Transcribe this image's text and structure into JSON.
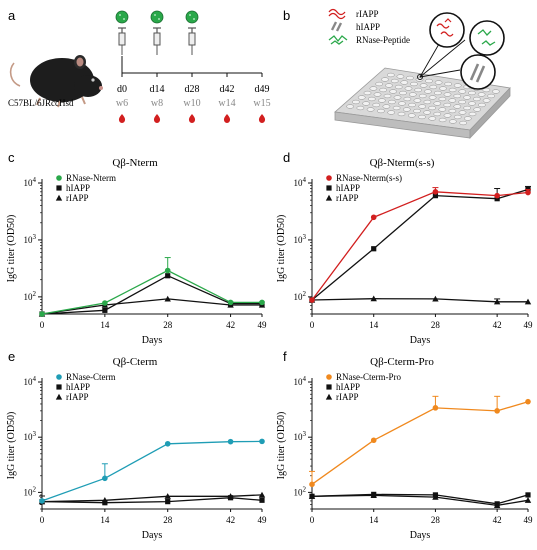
{
  "panels": {
    "a": {
      "letter": "a",
      "mouse_label": "C57BL/6JRccHsd",
      "timeline_days": [
        "d0",
        "d14",
        "d28",
        "d42",
        "d49"
      ],
      "timeline_weeks": [
        "w6",
        "w8",
        "w10",
        "w14",
        "w15"
      ],
      "colors": {
        "vaccine": "#2aa84a",
        "drop": "#d21f1f"
      }
    },
    "b": {
      "letter": "b",
      "legend": [
        "rIAPP",
        "hIAPP",
        "RNase-Peptide"
      ],
      "colors": {
        "rIAPP": "#d21f1f",
        "hIAPP": "#888888",
        "RNase-Peptide": "#2aa84a"
      }
    }
  },
  "chart_data": [
    {
      "letter": "c",
      "type": "line",
      "title": "Qβ-Nterm",
      "xlabel": "Days",
      "ylabel": "IgG titer (OD50)",
      "x": [
        0,
        14,
        28,
        42,
        49
      ],
      "y_scale": "log",
      "ylim": [
        50,
        10000
      ],
      "y_ticks": [
        {
          "label": "10",
          "sup": "2",
          "value": 100
        },
        {
          "label": "10",
          "sup": "3",
          "value": 1000
        },
        {
          "label": "10",
          "sup": "4",
          "value": 10000
        }
      ],
      "series": [
        {
          "name": "RNase-Nterm",
          "marker": "circle",
          "color": "#2aa84a",
          "values": [
            50,
            78,
            290,
            80,
            80
          ],
          "err": [
            0,
            0,
            200,
            0,
            0
          ]
        },
        {
          "name": "hIAPP",
          "marker": "square",
          "color": "#111111",
          "values": [
            50,
            58,
            235,
            76,
            76
          ],
          "err": [
            0,
            0,
            0,
            0,
            0
          ]
        },
        {
          "name": "rIAPP",
          "marker": "triangle",
          "color": "#111111",
          "values": [
            50,
            72,
            92,
            72,
            72
          ],
          "err": [
            0,
            0,
            0,
            0,
            0
          ]
        }
      ]
    },
    {
      "letter": "d",
      "type": "line",
      "title": "Qβ-Nterm(s-s)",
      "xlabel": "Days",
      "ylabel": "IgG titer (OD50)",
      "x": [
        0,
        14,
        28,
        42,
        49
      ],
      "y_scale": "log",
      "ylim": [
        50,
        10000
      ],
      "y_ticks": [
        {
          "label": "10",
          "sup": "2",
          "value": 100
        },
        {
          "label": "10",
          "sup": "3",
          "value": 1000
        },
        {
          "label": "10",
          "sup": "4",
          "value": 10000
        }
      ],
      "series": [
        {
          "name": "RNase-Nterm(s-s)",
          "marker": "circle",
          "color": "#d21f1f",
          "values": [
            88,
            2500,
            7000,
            6000,
            6800
          ],
          "err": [
            0,
            0,
            1300,
            0,
            900
          ]
        },
        {
          "name": "hIAPP",
          "marker": "square",
          "color": "#111111",
          "values": [
            88,
            700,
            6000,
            5300,
            7700
          ],
          "err": [
            0,
            0,
            0,
            2700,
            1000
          ]
        },
        {
          "name": "rIAPP",
          "marker": "triangle",
          "color": "#111111",
          "values": [
            88,
            93,
            92,
            82,
            82
          ],
          "err": [
            0,
            0,
            0,
            10,
            0
          ]
        }
      ]
    },
    {
      "letter": "e",
      "type": "line",
      "title": "Qβ-Cterm",
      "xlabel": "Days",
      "ylabel": "IgG titer (OD50)",
      "x": [
        0,
        14,
        28,
        42,
        49
      ],
      "y_scale": "log",
      "ylim": [
        50,
        10000
      ],
      "y_ticks": [
        {
          "label": "10",
          "sup": "2",
          "value": 100
        },
        {
          "label": "10",
          "sup": "3",
          "value": 1000
        },
        {
          "label": "10",
          "sup": "4",
          "value": 10000
        }
      ],
      "series": [
        {
          "name": "RNase-Cterm",
          "marker": "circle",
          "color": "#1f9db5",
          "values": [
            70,
            180,
            760,
            830,
            840
          ],
          "err": [
            0,
            150,
            0,
            0,
            0
          ]
        },
        {
          "name": "hIAPP",
          "marker": "square",
          "color": "#111111",
          "values": [
            68,
            65,
            68,
            80,
            72
          ],
          "err": [
            18,
            0,
            0,
            0,
            0
          ]
        },
        {
          "name": "rIAPP",
          "marker": "triangle",
          "color": "#111111",
          "values": [
            68,
            72,
            85,
            85,
            90
          ],
          "err": [
            0,
            0,
            0,
            0,
            0
          ]
        }
      ]
    },
    {
      "letter": "f",
      "type": "line",
      "title": "Qβ-Cterm-Pro",
      "xlabel": "Days",
      "ylabel": "IgG titer (OD50)",
      "x": [
        0,
        14,
        28,
        42,
        49
      ],
      "y_scale": "log",
      "ylim": [
        50,
        10000
      ],
      "y_ticks": [
        {
          "label": "10",
          "sup": "2",
          "value": 100
        },
        {
          "label": "10",
          "sup": "3",
          "value": 1000
        },
        {
          "label": "10",
          "sup": "4",
          "value": 10000
        }
      ],
      "series": [
        {
          "name": "RNase-Cterm-Pro",
          "marker": "circle",
          "color": "#f0891e",
          "values": [
            140,
            880,
            3400,
            3000,
            4400
          ],
          "err": [
            100,
            0,
            2100,
            2500,
            0
          ]
        },
        {
          "name": "hIAPP",
          "marker": "square",
          "color": "#111111",
          "values": [
            85,
            92,
            90,
            62,
            90
          ],
          "err": [
            0,
            0,
            0,
            0,
            0
          ]
        },
        {
          "name": "rIAPP",
          "marker": "triangle",
          "color": "#111111",
          "values": [
            85,
            88,
            82,
            58,
            72
          ],
          "err": [
            0,
            0,
            0,
            0,
            0
          ]
        }
      ]
    }
  ]
}
